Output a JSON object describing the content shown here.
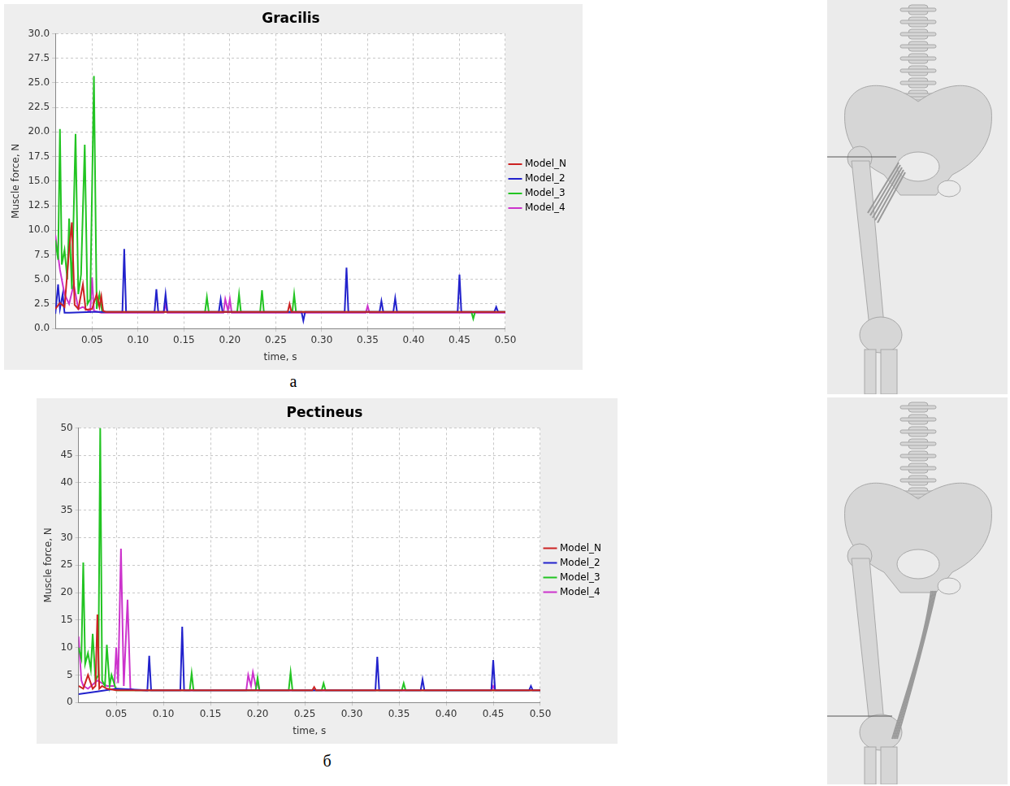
{
  "chart_data": [
    {
      "type": "line",
      "title": "Gracilis",
      "caption": "а",
      "x_label": "time, s",
      "y_label": "Muscle force, N",
      "xlim": [
        0.01,
        0.5
      ],
      "xticks": [
        {
          "value": 0.05,
          "label": "0.05"
        },
        {
          "value": 0.1,
          "label": "0.10"
        },
        {
          "value": 0.15,
          "label": "0.15"
        },
        {
          "value": 0.2,
          "label": "0.20"
        },
        {
          "value": 0.25,
          "label": "0.25"
        },
        {
          "value": 0.3,
          "label": "0.30"
        },
        {
          "value": 0.35,
          "label": "0.35"
        },
        {
          "value": 0.4,
          "label": "0.40"
        },
        {
          "value": 0.45,
          "label": "0.45"
        },
        {
          "value": 0.5,
          "label": "0.50"
        }
      ],
      "ylim": [
        0,
        30
      ],
      "yticks": [
        {
          "value": 0,
          "label": "0.0"
        },
        2.5,
        {
          "value": 5,
          "label": "5.0"
        },
        7.5,
        {
          "value": 10,
          "label": "10.0"
        },
        12.5,
        {
          "value": 15,
          "label": "15.0"
        },
        17.5,
        {
          "value": 20,
          "label": "20.0"
        },
        22.5,
        {
          "value": 25,
          "label": "25.0"
        },
        27.5,
        {
          "value": 30,
          "label": "30.0"
        }
      ],
      "grid": true,
      "legend": "right",
      "series": [
        {
          "name": "Model_N",
          "color": "#cc2222",
          "x": [
            0.01,
            0.015,
            0.02,
            0.025,
            0.028,
            0.031,
            0.035,
            0.04,
            0.043,
            0.05,
            0.055,
            0.058,
            0.06,
            0.062,
            0.065,
            0.1,
            0.2,
            0.263,
            0.265,
            0.267,
            0.3,
            0.4,
            0.5
          ],
          "values": [
            2.0,
            2.6,
            2.2,
            8.0,
            10.8,
            2.4,
            2.0,
            4.5,
            1.9,
            2.0,
            3.5,
            2.2,
            3.3,
            1.8,
            1.7,
            1.7,
            1.7,
            1.7,
            2.5,
            1.7,
            1.7,
            1.7,
            1.7
          ]
        },
        {
          "name": "Model_2",
          "color": "#2222cc",
          "x": [
            0.01,
            0.013,
            0.015,
            0.018,
            0.02,
            0.025,
            0.05,
            0.083,
            0.085,
            0.087,
            0.118,
            0.12,
            0.122,
            0.128,
            0.13,
            0.132,
            0.188,
            0.19,
            0.192,
            0.278,
            0.28,
            0.282,
            0.325,
            0.327,
            0.329,
            0.363,
            0.365,
            0.367,
            0.378,
            0.38,
            0.382,
            0.448,
            0.45,
            0.452,
            0.488,
            0.49,
            0.492,
            0.5
          ],
          "values": [
            1.5,
            4.5,
            2.0,
            3.5,
            1.6,
            1.6,
            1.7,
            1.7,
            8.1,
            1.7,
            1.7,
            4.0,
            1.7,
            1.7,
            3.5,
            1.7,
            1.7,
            3.0,
            1.7,
            1.7,
            0.8,
            1.7,
            1.7,
            6.2,
            1.7,
            1.7,
            2.8,
            1.7,
            1.7,
            3.1,
            1.7,
            1.7,
            5.5,
            1.7,
            1.7,
            2.2,
            1.7,
            1.7
          ]
        },
        {
          "name": "Model_3",
          "color": "#22c422",
          "x": [
            0.01,
            0.013,
            0.015,
            0.017,
            0.02,
            0.023,
            0.025,
            0.028,
            0.032,
            0.035,
            0.038,
            0.042,
            0.045,
            0.048,
            0.052,
            0.055,
            0.058,
            0.061,
            0.07,
            0.173,
            0.175,
            0.177,
            0.208,
            0.21,
            0.212,
            0.233,
            0.235,
            0.237,
            0.268,
            0.27,
            0.272,
            0.463,
            0.465,
            0.467,
            0.5
          ],
          "values": [
            9.0,
            7.0,
            20.3,
            6.5,
            8.0,
            5.0,
            11.2,
            4.0,
            19.8,
            3.5,
            5.5,
            18.7,
            2.5,
            3.0,
            25.7,
            2.0,
            3.5,
            1.7,
            1.7,
            1.7,
            3.2,
            1.7,
            1.7,
            3.5,
            1.7,
            1.7,
            3.9,
            1.7,
            1.7,
            3.5,
            1.7,
            1.7,
            1.0,
            1.7,
            1.7
          ]
        },
        {
          "name": "Model_4",
          "color": "#cc33cc",
          "x": [
            0.01,
            0.015,
            0.02,
            0.025,
            0.03,
            0.035,
            0.04,
            0.048,
            0.05,
            0.052,
            0.06,
            0.128,
            0.13,
            0.132,
            0.193,
            0.195,
            0.198,
            0.2,
            0.202,
            0.348,
            0.35,
            0.352,
            0.5
          ],
          "values": [
            9.5,
            6.0,
            3.5,
            2.5,
            4.5,
            2.0,
            2.2,
            1.7,
            5.2,
            1.8,
            1.6,
            1.6,
            2.5,
            1.6,
            1.6,
            3.0,
            1.8,
            3.0,
            1.6,
            1.6,
            2.3,
            1.6,
            1.6
          ]
        }
      ]
    },
    {
      "type": "line",
      "title": "Pectineus",
      "caption": "б",
      "x_label": "time, s",
      "y_label": "Muscle force, N",
      "xlim": [
        0.01,
        0.5
      ],
      "xticks": [
        {
          "value": 0.05,
          "label": "0.05"
        },
        {
          "value": 0.1,
          "label": "0.10"
        },
        {
          "value": 0.15,
          "label": "0.15"
        },
        {
          "value": 0.2,
          "label": "0.20"
        },
        {
          "value": 0.25,
          "label": "0.25"
        },
        {
          "value": 0.3,
          "label": "0.30"
        },
        {
          "value": 0.35,
          "label": "0.35"
        },
        {
          "value": 0.4,
          "label": "0.40"
        },
        {
          "value": 0.45,
          "label": "0.45"
        },
        {
          "value": 0.5,
          "label": "0.50"
        }
      ],
      "ylim": [
        0,
        50
      ],
      "yticks": [
        0,
        5,
        10,
        15,
        20,
        25,
        30,
        35,
        40,
        45,
        50
      ],
      "grid": true,
      "legend": "right",
      "series": [
        {
          "name": "Model_N",
          "color": "#cc2222",
          "x": [
            0.01,
            0.015,
            0.02,
            0.025,
            0.028,
            0.03,
            0.032,
            0.035,
            0.04,
            0.05,
            0.258,
            0.26,
            0.262,
            0.5
          ],
          "values": [
            3.0,
            2.5,
            5.0,
            2.5,
            3.0,
            16.0,
            2.5,
            3.0,
            2.5,
            2.2,
            2.2,
            2.8,
            2.2,
            2.2
          ]
        },
        {
          "name": "Model_2",
          "color": "#2222cc",
          "x": [
            0.01,
            0.03,
            0.05,
            0.083,
            0.085,
            0.087,
            0.118,
            0.12,
            0.122,
            0.325,
            0.327,
            0.329,
            0.373,
            0.375,
            0.377,
            0.448,
            0.45,
            0.452,
            0.488,
            0.49,
            0.492,
            0.5
          ],
          "values": [
            1.5,
            2.0,
            2.5,
            2.2,
            8.5,
            2.2,
            2.2,
            13.8,
            2.2,
            2.2,
            8.3,
            2.2,
            2.2,
            4.2,
            2.2,
            2.2,
            7.7,
            2.2,
            2.2,
            3.0,
            2.2,
            2.2
          ]
        },
        {
          "name": "Model_3",
          "color": "#22c422",
          "x": [
            0.01,
            0.013,
            0.015,
            0.017,
            0.02,
            0.023,
            0.025,
            0.028,
            0.031,
            0.033,
            0.035,
            0.038,
            0.04,
            0.043,
            0.045,
            0.05,
            0.128,
            0.13,
            0.132,
            0.198,
            0.2,
            0.202,
            0.233,
            0.235,
            0.237,
            0.268,
            0.27,
            0.272,
            0.353,
            0.355,
            0.357,
            0.5
          ],
          "values": [
            10.0,
            8.0,
            25.5,
            7.0,
            9.0,
            6.0,
            12.5,
            4.0,
            5.0,
            50.0,
            4.0,
            3.0,
            10.5,
            3.0,
            5.0,
            2.2,
            2.2,
            5.3,
            2.2,
            2.2,
            4.5,
            2.2,
            2.2,
            5.5,
            2.2,
            2.2,
            3.5,
            2.2,
            2.2,
            3.5,
            2.2,
            2.2
          ]
        },
        {
          "name": "Model_4",
          "color": "#cc33cc",
          "x": [
            0.01,
            0.013,
            0.015,
            0.02,
            0.03,
            0.04,
            0.048,
            0.05,
            0.052,
            0.055,
            0.058,
            0.062,
            0.065,
            0.07,
            0.188,
            0.19,
            0.193,
            0.195,
            0.198,
            0.2,
            0.202,
            0.448,
            0.45,
            0.452,
            0.5
          ],
          "values": [
            12.0,
            4.0,
            3.0,
            2.5,
            4.0,
            3.0,
            3.0,
            10.0,
            3.5,
            28.0,
            3.0,
            18.7,
            2.5,
            2.2,
            2.2,
            5.0,
            3.0,
            5.5,
            3.0,
            3.5,
            2.2,
            2.2,
            3.0,
            2.2,
            2.2
          ]
        }
      ]
    }
  ]
}
